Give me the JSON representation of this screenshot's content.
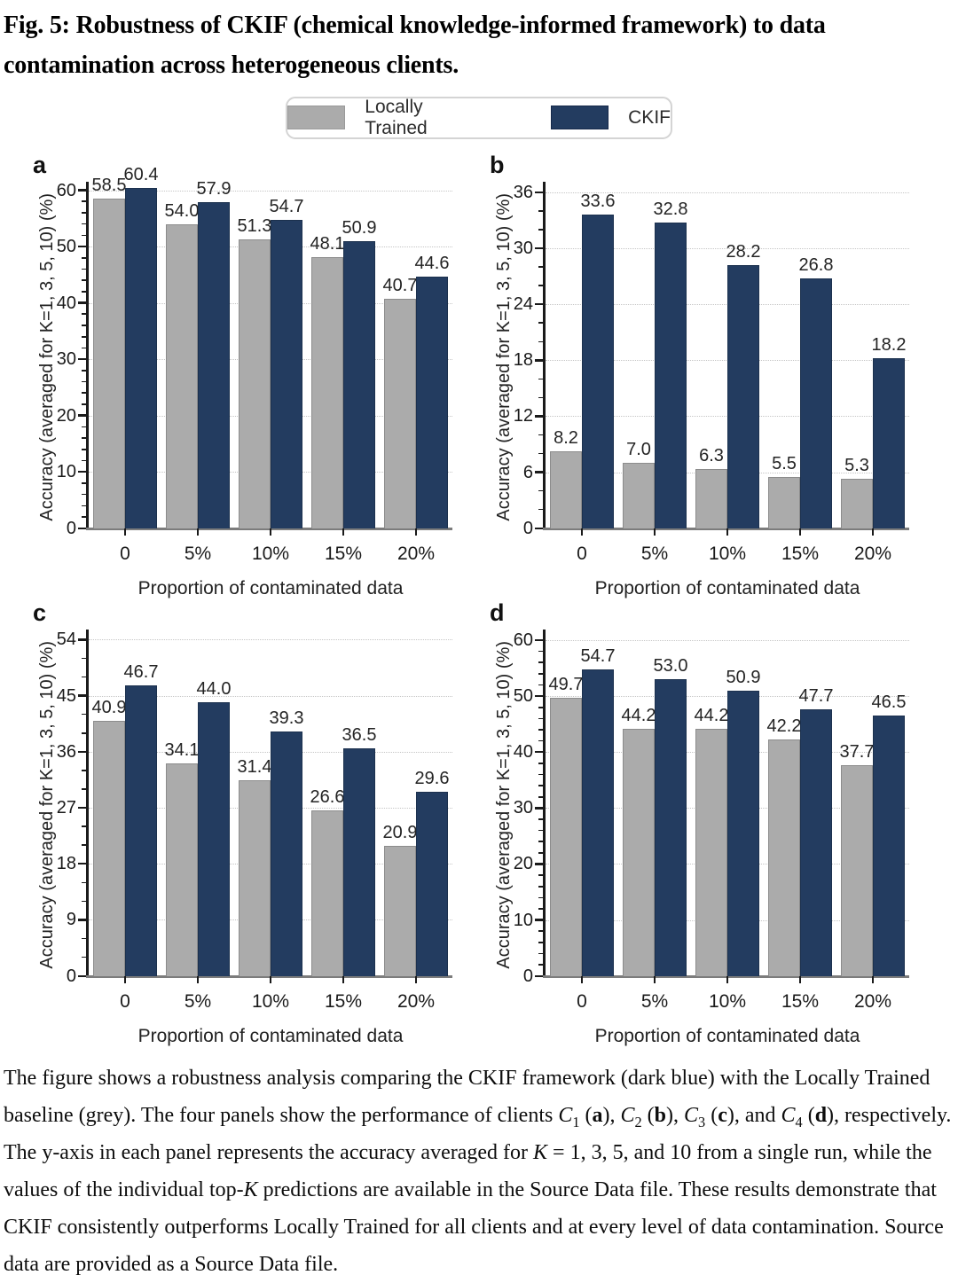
{
  "title": "Fig. 5: Robustness of CKIF (chemical knowledge-informed framework) to data contamination across heterogeneous clients.",
  "legend": {
    "items": [
      {
        "label": "Locally Trained",
        "color": "#ababab"
      },
      {
        "label": "CKIF",
        "color": "#233c60"
      }
    ]
  },
  "colors": {
    "locally_trained": "#ababab",
    "ckif": "#233c60",
    "grid": "#c5c5c5",
    "axis": "#1a1a1a",
    "baseline": "#7c7c7c"
  },
  "chart_data": [
    {
      "type": "bar",
      "panel": "a",
      "categories": [
        "0",
        "5%",
        "10%",
        "15%",
        "20%"
      ],
      "series": [
        {
          "name": "Locally Trained",
          "values": [
            58.5,
            54.0,
            51.3,
            48.1,
            40.7
          ]
        },
        {
          "name": "CKIF",
          "values": [
            60.4,
            57.9,
            54.7,
            50.9,
            44.6
          ]
        }
      ],
      "ylabel": "Accuracy (averaged for K=1, 3, 5, 10) (%)",
      "xlabel": "Proportion of contaminated data",
      "yticks": [
        0,
        10,
        20,
        30,
        40,
        50,
        60
      ],
      "ylim": [
        0,
        60.6
      ],
      "minor_step": 2,
      "grid": "horizontal-dotted",
      "value_labels": true,
      "legend_position": "none"
    },
    {
      "type": "bar",
      "panel": "b",
      "categories": [
        "0",
        "5%",
        "10%",
        "15%",
        "20%"
      ],
      "series": [
        {
          "name": "Locally Trained",
          "values": [
            8.2,
            7.0,
            6.3,
            5.5,
            5.3
          ]
        },
        {
          "name": "CKIF",
          "values": [
            33.6,
            32.8,
            28.2,
            26.8,
            18.2
          ]
        }
      ],
      "ylabel": "Accuracy (averaged for K=1, 3, 5, 10) (%)",
      "xlabel": "Proportion of contaminated data",
      "yticks": [
        0,
        6,
        12,
        18,
        24,
        30,
        36
      ],
      "ylim": [
        0,
        36.6
      ],
      "minor_step": 2,
      "grid": "horizontal-dotted",
      "value_labels": true,
      "legend_position": "none"
    },
    {
      "type": "bar",
      "panel": "c",
      "categories": [
        "0",
        "5%",
        "10%",
        "15%",
        "20%"
      ],
      "series": [
        {
          "name": "Locally Trained",
          "values": [
            40.9,
            34.1,
            31.4,
            26.6,
            20.9
          ]
        },
        {
          "name": "CKIF",
          "values": [
            46.7,
            44.0,
            39.3,
            36.5,
            29.6
          ]
        }
      ],
      "ylabel": "Accuracy (averaged for K=1, 3, 5, 10) (%)",
      "xlabel": "Proportion of contaminated data",
      "yticks": [
        0,
        9,
        18,
        27,
        36,
        45,
        54
      ],
      "ylim": [
        0,
        54.8
      ],
      "minor_step": 3,
      "grid": "horizontal-dotted",
      "value_labels": true,
      "legend_position": "none"
    },
    {
      "type": "bar",
      "panel": "d",
      "categories": [
        "0",
        "5%",
        "10%",
        "15%",
        "20%"
      ],
      "series": [
        {
          "name": "Locally Trained",
          "values": [
            49.7,
            44.2,
            44.2,
            42.2,
            37.7
          ]
        },
        {
          "name": "CKIF",
          "values": [
            54.7,
            53.0,
            50.9,
            47.7,
            46.5
          ]
        }
      ],
      "ylabel": "Accuracy (averaged for K=1, 3, 5, 10) (%)",
      "xlabel": "Proportion of contaminated data",
      "yticks": [
        0,
        10,
        20,
        30,
        40,
        50,
        60
      ],
      "ylim": [
        0,
        61.0
      ],
      "minor_step": 2,
      "grid": "horizontal-dotted",
      "value_labels": true,
      "legend_position": "none"
    }
  ],
  "caption": {
    "segments": [
      {
        "t": "The figure shows a robustness analysis comparing the CKIF framework (dark blue) with the Locally Trained baseline (grey). The four panels show the performance of clients "
      },
      {
        "t": "C",
        "i": true
      },
      {
        "t": "1",
        "sub": true
      },
      {
        "t": " ("
      },
      {
        "t": "a",
        "b": true
      },
      {
        "t": "), "
      },
      {
        "t": "C",
        "i": true
      },
      {
        "t": "2",
        "sub": true
      },
      {
        "t": " ("
      },
      {
        "t": "b",
        "b": true
      },
      {
        "t": "), "
      },
      {
        "t": "C",
        "i": true
      },
      {
        "t": "3",
        "sub": true
      },
      {
        "t": " ("
      },
      {
        "t": "c",
        "b": true
      },
      {
        "t": "), and "
      },
      {
        "t": "C",
        "i": true
      },
      {
        "t": "4",
        "sub": true
      },
      {
        "t": " ("
      },
      {
        "t": "d",
        "b": true
      },
      {
        "t": "), respectively. The y-axis in each panel represents the accuracy averaged for "
      },
      {
        "t": "K",
        "i": true
      },
      {
        "t": " = 1, 3, 5, and 10 from a single run, while the values of the individual top-"
      },
      {
        "t": "K",
        "i": true
      },
      {
        "t": " predictions are available in the Source Data file. These results demonstrate that CKIF consistently outperforms Locally Trained for all clients and at every level of data contamination. Source data are provided as a Source Data file."
      }
    ]
  }
}
